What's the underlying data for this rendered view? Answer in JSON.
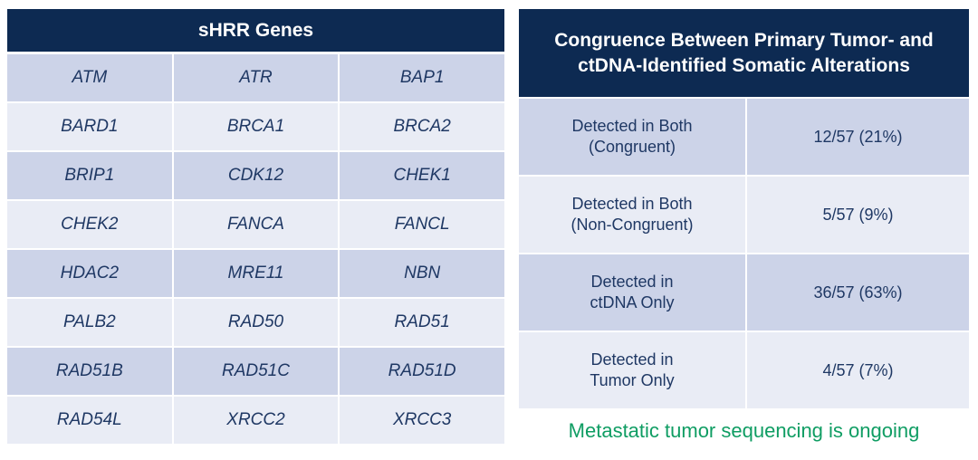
{
  "colors": {
    "header_navy": "#0d2a52",
    "row_dark": "#ccd3e8",
    "row_light": "#e9ecf5",
    "text_navy": "#1f3864",
    "footnote_green": "#0f9d63"
  },
  "left_table": {
    "title": "sHRR Genes",
    "genes": [
      "ATM",
      "ATR",
      "BAP1",
      "BARD1",
      "BRCA1",
      "BRCA2",
      "BRIP1",
      "CDK12",
      "CHEK1",
      "CHEK2",
      "FANCA",
      "FANCL",
      "HDAC2",
      "MRE11",
      "NBN",
      "PALB2",
      "RAD50",
      "RAD51",
      "RAD51B",
      "RAD51C",
      "RAD51D",
      "RAD54L",
      "XRCC2",
      "XRCC3"
    ]
  },
  "right_table": {
    "title_line1": "Congruence Between Primary Tumor- and",
    "title_line2": "ctDNA-Identified Somatic Alterations",
    "rows": [
      {
        "label_line1": "Detected in Both",
        "label_line2": "(Congruent)",
        "value": "12/57 (21%)"
      },
      {
        "label_line1": "Detected in Both",
        "label_line2": "(Non-Congruent)",
        "value": "5/57 (9%)"
      },
      {
        "label_line1": "Detected in",
        "label_line2": "ctDNA Only",
        "value": "36/57 (63%)"
      },
      {
        "label_line1": "Detected in",
        "label_line2": "Tumor Only",
        "value": "4/57 (7%)"
      }
    ],
    "footnote": "Metastatic tumor sequencing is ongoing"
  },
  "chart_data": [
    {
      "type": "table",
      "title": "sHRR Genes",
      "columns": 3,
      "rows": [
        [
          "ATM",
          "ATR",
          "BAP1"
        ],
        [
          "BARD1",
          "BRCA1",
          "BRCA2"
        ],
        [
          "BRIP1",
          "CDK12",
          "CHEK1"
        ],
        [
          "CHEK2",
          "FANCA",
          "FANCL"
        ],
        [
          "HDAC2",
          "MRE11",
          "NBN"
        ],
        [
          "PALB2",
          "RAD50",
          "RAD51"
        ],
        [
          "RAD51B",
          "RAD51C",
          "RAD51D"
        ],
        [
          "RAD54L",
          "XRCC2",
          "XRCC3"
        ]
      ]
    },
    {
      "type": "table",
      "title": "Congruence Between Primary Tumor- and ctDNA-Identified Somatic Alterations",
      "rows": [
        [
          "Detected in Both (Congruent)",
          "12/57 (21%)"
        ],
        [
          "Detected in Both (Non-Congruent)",
          "5/57 (9%)"
        ],
        [
          "Detected in ctDNA Only",
          "36/57 (63%)"
        ],
        [
          "Detected in Tumor Only",
          "4/57 (7%)"
        ]
      ],
      "footnote": "Metastatic tumor sequencing is ongoing"
    }
  ]
}
